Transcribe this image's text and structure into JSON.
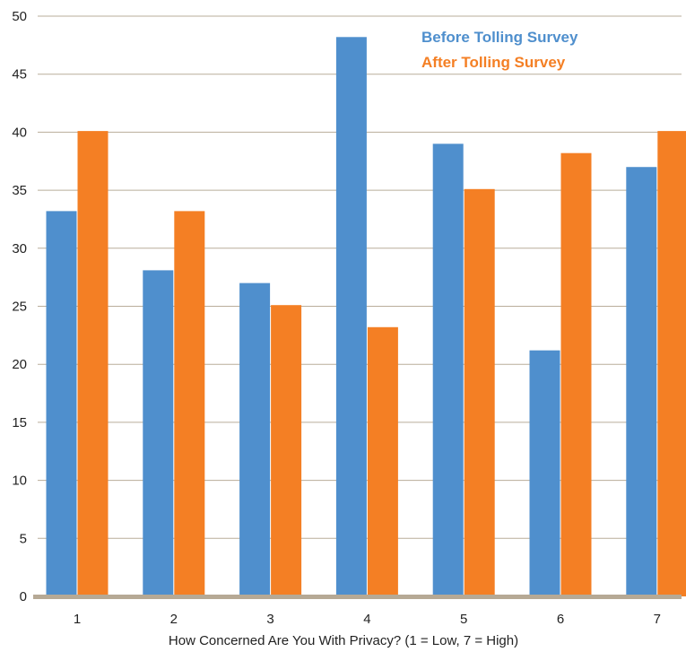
{
  "chart_data": {
    "type": "bar",
    "xlabel": "How Concerned Are You With Privacy? (1 = Low, 7 = High)",
    "ylabel": "",
    "ylim": [
      0,
      50
    ],
    "yticks": [
      0,
      5,
      10,
      15,
      20,
      25,
      30,
      35,
      40,
      45,
      50
    ],
    "categories": [
      "1",
      "2",
      "3",
      "4",
      "5",
      "6",
      "7"
    ],
    "series": [
      {
        "name": "Before Tolling Survey",
        "color": "#4f8fcd",
        "values": [
          33.2,
          28.1,
          27.0,
          48.2,
          39.0,
          21.2,
          37.0
        ]
      },
      {
        "name": "After Tolling Survey",
        "color": "#f47f24",
        "values": [
          40.1,
          33.2,
          25.1,
          23.2,
          35.1,
          38.2,
          40.1
        ]
      }
    ],
    "grid": true,
    "legend_position": "top-right"
  }
}
